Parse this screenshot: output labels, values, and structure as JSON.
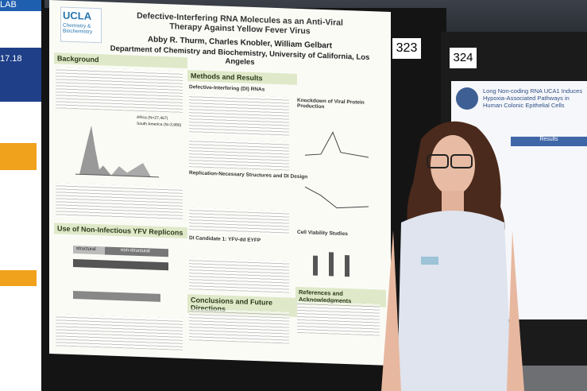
{
  "left_poster": {
    "lab": "LAB",
    "number": "17.18"
  },
  "poster": {
    "logo": {
      "name": "UCLA",
      "department": "Chemistry & Biochemistry"
    },
    "title": "Defective-Interfering RNA Molecules as an Anti-Viral Therapy Against Yellow Fever Virus",
    "authors": "Abby R. Thurm, Charles Knobler, William Gelbart",
    "affiliation": "Department of Chemistry and Biochemistry, University of California, Los Angeles",
    "sections": {
      "background": "Background",
      "methods": "Methods and Results",
      "replicons": "Use of Non-Infectious YFV Replicons",
      "conclusions": "Conclusions and Future Directions",
      "references": "References and Acknowledgments",
      "di_rnas": "Defective-Interfering (DI) RNAs",
      "replication": "Replication-Necessary Structures and DI Design",
      "candidate": "DI Candidate 1: YFV-dd EYFP",
      "knockdown": "Knockdown of Viral Protein Production",
      "viability": "Cell Viability Studies"
    },
    "legend": [
      "Africa (N=27,467)",
      "South America (N=3,986)"
    ],
    "construct_labels": [
      "structural",
      "non-structural"
    ]
  },
  "board_numbers": [
    "323",
    "324"
  ],
  "right_poster": {
    "title": "Long Non-coding RNA UCA1 Induces Hypoxia-Associated Pathways in Human Colonic Epithelial Cells",
    "section": "Results"
  }
}
